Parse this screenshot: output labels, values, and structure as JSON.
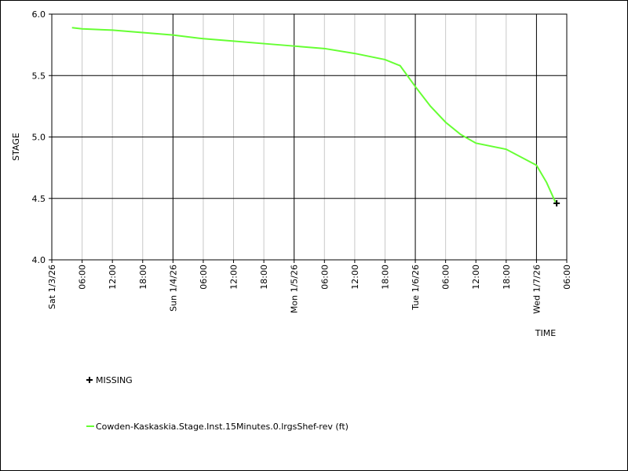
{
  "chart_data": {
    "type": "line",
    "y_label": "STAGE",
    "x_label": "TIME",
    "xlim": [
      "2026-01-03T00:00",
      "2026-01-07T06:00"
    ],
    "xticks": [
      {
        "value": "2026-01-03T00:00",
        "label": "Sat 1/3/26"
      },
      {
        "value": "2026-01-03T06:00",
        "label": "06:00"
      },
      {
        "value": "2026-01-03T12:00",
        "label": "12:00"
      },
      {
        "value": "2026-01-03T18:00",
        "label": "18:00"
      },
      {
        "value": "2026-01-04T00:00",
        "label": "Sun 1/4/26"
      },
      {
        "value": "2026-01-04T06:00",
        "label": "06:00"
      },
      {
        "value": "2026-01-04T12:00",
        "label": "12:00"
      },
      {
        "value": "2026-01-04T18:00",
        "label": "18:00"
      },
      {
        "value": "2026-01-05T00:00",
        "label": "Mon 1/5/26"
      },
      {
        "value": "2026-01-05T06:00",
        "label": "06:00"
      },
      {
        "value": "2026-01-05T12:00",
        "label": "12:00"
      },
      {
        "value": "2026-01-05T18:00",
        "label": "18:00"
      },
      {
        "value": "2026-01-06T00:00",
        "label": "Tue 1/6/26"
      },
      {
        "value": "2026-01-06T06:00",
        "label": "06:00"
      },
      {
        "value": "2026-01-06T12:00",
        "label": "12:00"
      },
      {
        "value": "2026-01-06T18:00",
        "label": "18:00"
      },
      {
        "value": "2026-01-07T00:00",
        "label": "Wed 1/7/26"
      },
      {
        "value": "2026-01-07T06:00",
        "label": "06:00"
      }
    ],
    "ylim": [
      4.0,
      6.0
    ],
    "yticks": [
      {
        "value": 4.0,
        "label": "4.0"
      },
      4.5,
      {
        "value": 5.0,
        "label": "5.0"
      },
      5.5,
      {
        "value": 6.0,
        "label": "6.0"
      }
    ],
    "grid": true,
    "x": [
      "2026-01-03T04:00",
      "2026-01-03T06:00",
      "2026-01-03T12:00",
      "2026-01-03T18:00",
      "2026-01-04T00:00",
      "2026-01-04T06:00",
      "2026-01-04T12:00",
      "2026-01-04T18:00",
      "2026-01-05T00:00",
      "2026-01-05T06:00",
      "2026-01-05T12:00",
      "2026-01-05T18:00",
      "2026-01-05T21:00",
      "2026-01-06T00:00",
      "2026-01-06T03:00",
      "2026-01-06T06:00",
      "2026-01-06T09:00",
      "2026-01-06T12:00",
      "2026-01-06T18:00",
      "2026-01-07T00:00",
      "2026-01-07T02:00",
      "2026-01-07T03:45"
    ],
    "series": [
      {
        "name": "Cowden-Kaskaskia.Stage.Inst.15Minutes.0.lrgsShef-rev (ft)",
        "color": "#66ff33",
        "values": [
          5.89,
          5.88,
          5.87,
          5.85,
          5.83,
          5.8,
          5.78,
          5.76,
          5.74,
          5.72,
          5.68,
          5.63,
          5.58,
          5.41,
          5.25,
          5.12,
          5.02,
          4.95,
          4.9,
          4.77,
          4.63,
          4.47
        ]
      }
    ],
    "missing": {
      "name": "MISSING",
      "color": "#000000",
      "x": [
        "2026-01-07T04:00"
      ],
      "values": [
        4.46
      ]
    }
  }
}
